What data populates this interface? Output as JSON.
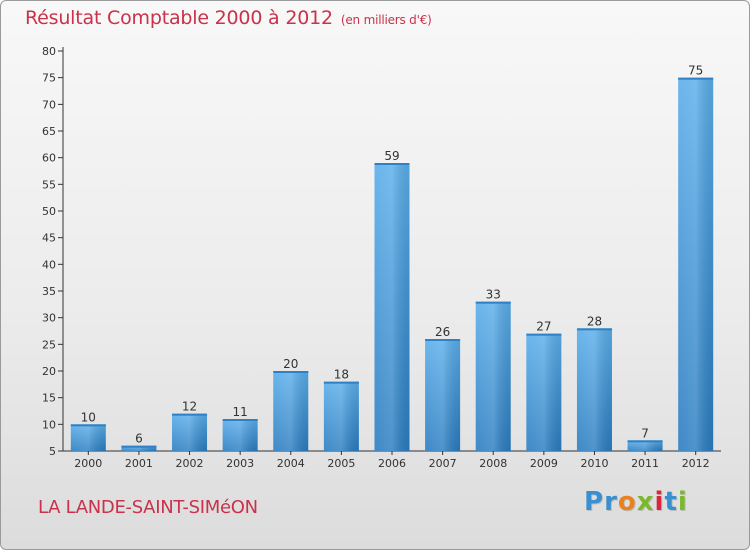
{
  "chart_data": {
    "type": "bar",
    "title": "Résultat Comptable 2000 à 2012",
    "unit_label": "(en milliers d'€)",
    "categories": [
      "2000",
      "2001",
      "2002",
      "2003",
      "2004",
      "2005",
      "2006",
      "2007",
      "2008",
      "2009",
      "2010",
      "2011",
      "2012"
    ],
    "values": [
      10,
      6,
      12,
      11,
      20,
      18,
      59,
      26,
      33,
      27,
      28,
      7,
      75
    ],
    "ylim": [
      5,
      80
    ],
    "yticks": [
      5,
      10,
      15,
      20,
      25,
      30,
      35,
      40,
      45,
      50,
      55,
      60,
      65,
      70,
      75,
      80
    ],
    "xlabel": "",
    "ylabel": "",
    "grid": false,
    "bar_color": "#3d93d8"
  },
  "footer": {
    "commune": "LA LANDE-SAINT-SIMéON",
    "logo_letters": [
      "P",
      "r",
      "o",
      "x",
      "i",
      "t",
      "i"
    ],
    "logo_colors": [
      "#3a8fd0",
      "#3a8fd0",
      "#e8821e",
      "#7ab92c",
      "#d8263d",
      "#3a8fd0",
      "#7ab92c"
    ]
  }
}
